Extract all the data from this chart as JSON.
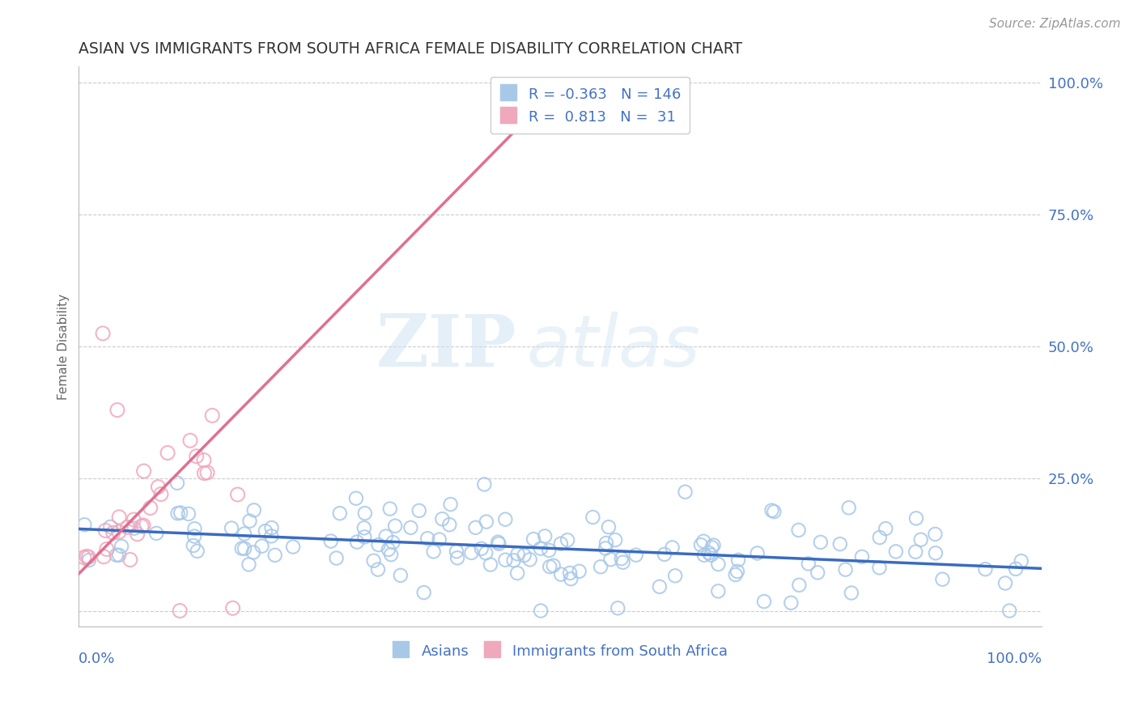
{
  "title": "ASIAN VS IMMIGRANTS FROM SOUTH AFRICA FEMALE DISABILITY CORRELATION CHART",
  "source": "Source: ZipAtlas.com",
  "ylabel": "Female Disability",
  "yticks": [
    0.0,
    0.25,
    0.5,
    0.75,
    1.0
  ],
  "ytick_labels": [
    "",
    "25.0%",
    "50.0%",
    "75.0%",
    "100.0%"
  ],
  "legend_labels": [
    "Asians",
    "Immigrants from South Africa"
  ],
  "blue_line_color": "#3a6bbf",
  "pink_line_color": "#e07090",
  "blue_scatter_color": "#a8c8e8",
  "pink_scatter_color": "#f0a8bc",
  "blue_intercept": 0.155,
  "blue_slope": -0.075,
  "pink_intercept": 0.07,
  "pink_slope": 1.85,
  "R_blue": -0.363,
  "N_blue": 146,
  "R_pink": 0.813,
  "N_pink": 31,
  "watermark_zip": "ZIP",
  "watermark_atlas": "atlas",
  "title_color": "#333333",
  "axis_label_color": "#4472c4",
  "grid_color": "#cccccc",
  "background_color": "#ffffff"
}
